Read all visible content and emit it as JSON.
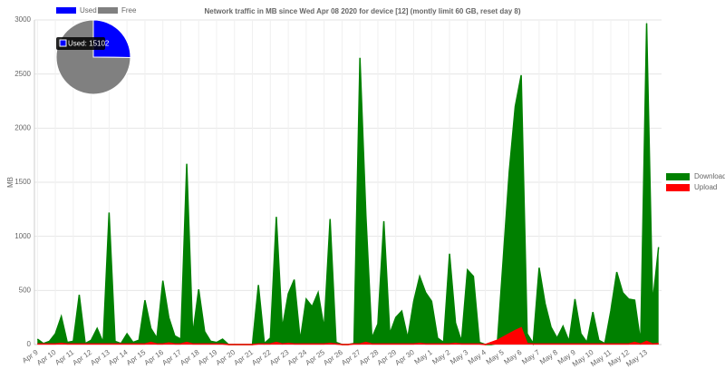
{
  "chart_data": [
    {
      "type": "line",
      "title": "Network traffic in MB since Wed Apr 08 2020 for device [12] (montly limit 60 GB, reset day 8)",
      "y_label": "MB",
      "categories": [
        "Apr 9",
        null,
        null,
        "Apr 10",
        null,
        null,
        "Apr 11",
        null,
        null,
        "Apr 12",
        null,
        null,
        "Apr 13",
        null,
        null,
        "Apr 14",
        null,
        null,
        "Apr 15",
        null,
        null,
        "Apr 16",
        null,
        null,
        "Apr 17",
        null,
        null,
        "Apr 18",
        null,
        null,
        "Apr 19",
        null,
        null,
        "Apr 20",
        null,
        null,
        "Apr 21",
        null,
        null,
        "Apr 22",
        null,
        null,
        "Apr 23",
        null,
        null,
        "Apr 24",
        null,
        null,
        "Apr 25",
        null,
        null,
        "Apr 26",
        null,
        null,
        "Apr 27",
        null,
        null,
        "Apr 28",
        null,
        null,
        "Apr 29",
        null,
        null,
        "Apr 30",
        null,
        null,
        "May 1",
        null,
        null,
        "May 2",
        null,
        null,
        "May 3",
        null,
        null,
        "May 4",
        null,
        null,
        "May 5",
        null,
        null,
        "May 6",
        null,
        null,
        "May 7",
        null,
        null,
        "May 8",
        null,
        null,
        "May 9",
        null,
        null,
        "May 10",
        null,
        null,
        "May 11",
        null,
        null,
        "May 12",
        null,
        null,
        "May 13",
        null,
        null
      ],
      "series": [
        {
          "name": "Download",
          "color": "#008000",
          "values": [
            50,
            10,
            30,
            100,
            260,
            20,
            30,
            460,
            10,
            40,
            150,
            20,
            1220,
            30,
            10,
            100,
            20,
            40,
            410,
            150,
            60,
            590,
            250,
            80,
            50,
            1670,
            90,
            510,
            120,
            30,
            20,
            50,
            0,
            0,
            0,
            0,
            0,
            550,
            10,
            60,
            1180,
            150,
            470,
            600,
            40,
            420,
            350,
            480,
            150,
            1160,
            20,
            0,
            0,
            10,
            2650,
            1190,
            60,
            190,
            1140,
            100,
            250,
            310,
            60,
            400,
            630,
            480,
            400,
            60,
            20,
            840,
            200,
            30,
            690,
            630,
            20,
            0,
            0,
            10,
            800,
            1600,
            2200,
            2490,
            100,
            10,
            710,
            380,
            160,
            60,
            170,
            30,
            420,
            100,
            20,
            300,
            40,
            10,
            310,
            670,
            480,
            420,
            410,
            20,
            2970,
            380,
            900
          ]
        },
        {
          "name": "Upload",
          "color": "#ff0000",
          "values": [
            5,
            5,
            5,
            5,
            10,
            5,
            5,
            5,
            5,
            5,
            5,
            5,
            5,
            5,
            5,
            5,
            5,
            5,
            5,
            20,
            5,
            5,
            15,
            5,
            5,
            20,
            5,
            5,
            5,
            5,
            5,
            5,
            0,
            0,
            0,
            0,
            0,
            5,
            5,
            5,
            20,
            5,
            10,
            5,
            5,
            5,
            5,
            5,
            5,
            10,
            5,
            0,
            0,
            5,
            5,
            20,
            5,
            5,
            5,
            5,
            5,
            5,
            5,
            5,
            10,
            5,
            5,
            5,
            5,
            5,
            10,
            5,
            5,
            5,
            5,
            0,
            20,
            40,
            70,
            100,
            130,
            155,
            10,
            5,
            5,
            5,
            5,
            5,
            5,
            5,
            5,
            5,
            5,
            5,
            5,
            5,
            5,
            5,
            5,
            5,
            20,
            5,
            30,
            5,
            10
          ]
        }
      ],
      "ylim": [
        0,
        3000
      ],
      "yticks": [
        0,
        500,
        1000,
        1500,
        2000,
        2500,
        3000
      ],
      "grid": true,
      "legend": "right"
    },
    {
      "type": "pie",
      "categories": [
        "Used",
        "Free"
      ],
      "values": [
        15102,
        44898
      ],
      "value_labels": [
        "Used: 15102",
        null
      ],
      "colors": [
        "#0000ff",
        "#808080"
      ],
      "legend": "top"
    }
  ]
}
